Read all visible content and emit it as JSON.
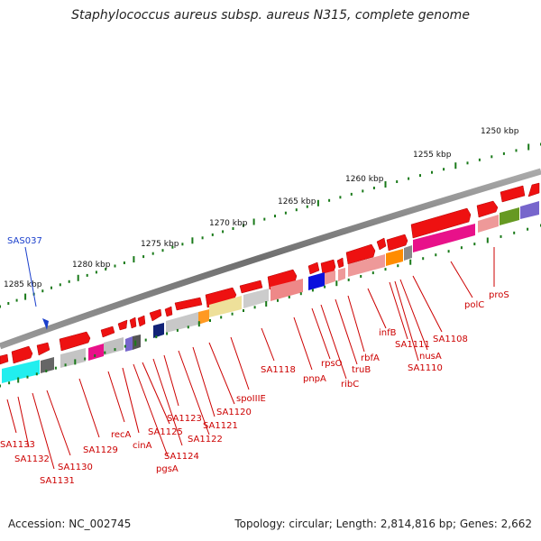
{
  "title": "Staphylococcus aureus subsp. aureus N315, complete genome",
  "accession": "Accession: NC_002745",
  "topology": "Topology: circular; Length: 2,814,816 bp; Genes: 2,662",
  "ruler_labels": [
    "1250 kbp",
    "1255 kbp",
    "1260 kbp",
    "1265 kbp",
    "1270 kbp",
    "1275 kbp",
    "1280 kbp",
    "1285 kbp"
  ],
  "highlight_label": "SAS037",
  "gene_labels": [
    "SA1133",
    "SA1132",
    "SA1131",
    "SA1130",
    "SA1129",
    "recA",
    "cinA",
    "pgsA",
    "SA1125",
    "SA1124",
    "SA1123",
    "SA1122",
    "SA1121",
    "SA1120",
    "spoIIIE",
    "SA1118",
    "pnpA",
    "rpsO",
    "ribC",
    "truB",
    "rbfA",
    "infB",
    "SA1111",
    "SA1110",
    "nusA",
    "SA1108",
    "polC",
    "proS"
  ],
  "colors": {
    "gene_arrow": "#ee1111",
    "label": "#cc0000",
    "tick": "#1a7a1a",
    "backbone": "#777777",
    "marker": "#1a3fcc"
  }
}
